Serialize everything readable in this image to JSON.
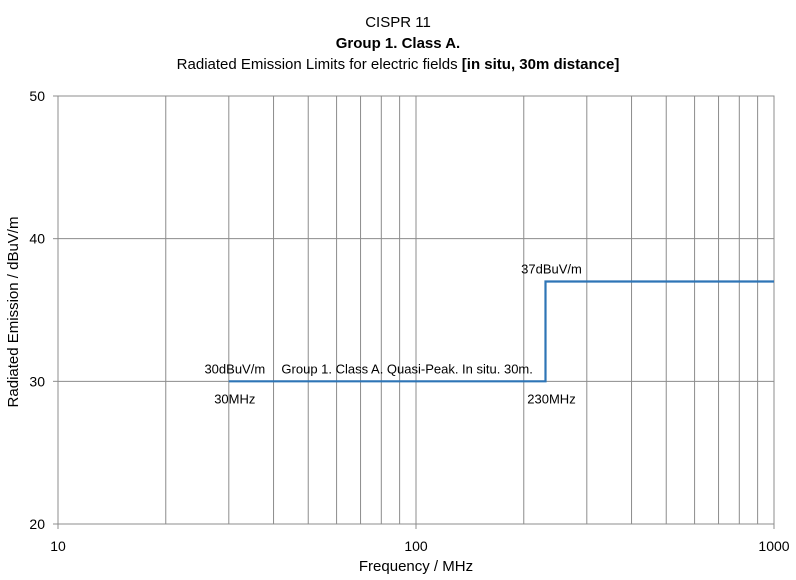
{
  "chart_data": {
    "type": "line",
    "title": "CISPR 11",
    "subtitle": "Group 1. Class A.",
    "subtitle2_plain": "Radiated Emission Limits for electric fields ",
    "subtitle2_bold": "[in situ, 30m distance]",
    "xlabel": "Frequency / MHz",
    "ylabel": "Radiated Emission / dBuV/m",
    "xscale": "log",
    "xlim": [
      10,
      1000
    ],
    "ylim": [
      20,
      50
    ],
    "xticks": [
      10,
      100,
      1000
    ],
    "xtick_labels": [
      "10",
      "100",
      "1000"
    ],
    "yticks": [
      20,
      30,
      40,
      50
    ],
    "ytick_labels": [
      "20",
      "30",
      "40",
      "50"
    ],
    "grid": true,
    "color": "#2E75B6",
    "series": [
      {
        "name": "Group 1. Class A. Quasi-Peak. In situ. 30m.",
        "x": [
          30,
          230,
          230,
          1000
        ],
        "y": [
          30,
          30,
          37,
          37
        ]
      }
    ],
    "annotations": [
      {
        "text": "30dBuV/m",
        "x": 30,
        "y": 30,
        "pos": "above"
      },
      {
        "text": "30MHz",
        "x": 30,
        "y": 30,
        "pos": "below"
      },
      {
        "text": "230MHz",
        "x": 230,
        "y": 30,
        "pos": "below"
      },
      {
        "text": "37dBuV/m",
        "x": 230,
        "y": 37,
        "pos": "above"
      }
    ]
  }
}
